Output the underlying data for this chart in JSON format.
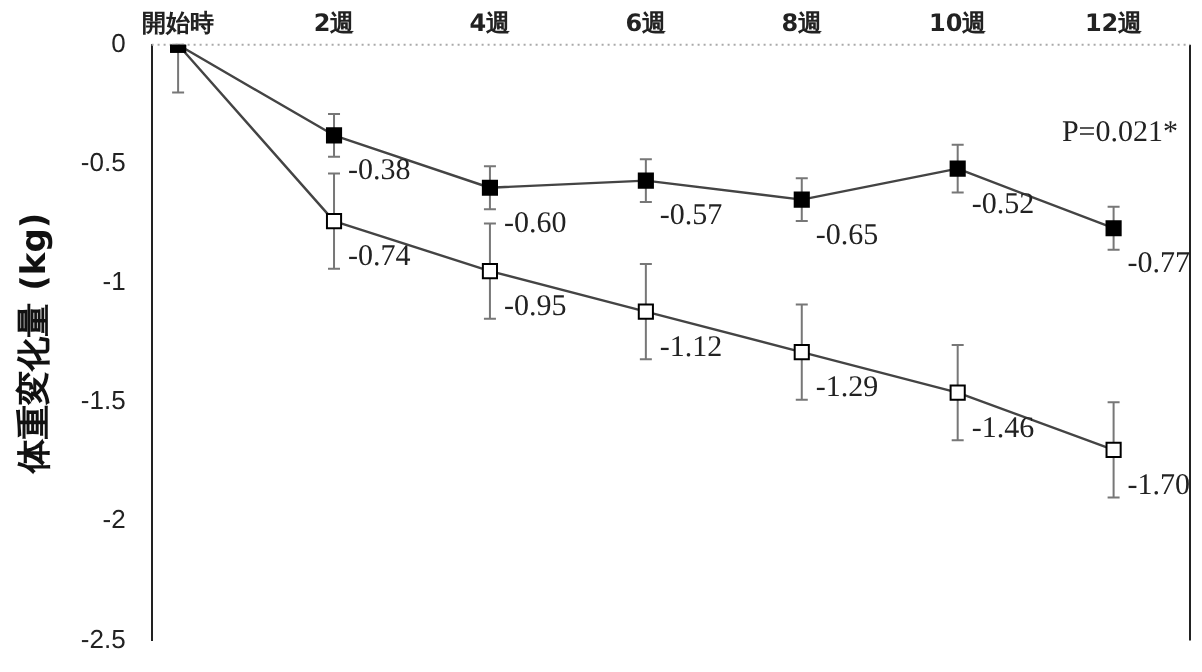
{
  "chart_data": {
    "type": "line",
    "ylabel": "体重変化量 (kg)",
    "categories": [
      "開始時",
      "2週",
      "4週",
      "6週",
      "8週",
      "10週",
      "12週"
    ],
    "series": [
      {
        "color": "#000000",
        "values": [
          0,
          -0.38,
          -0.6,
          -0.57,
          -0.65,
          -0.52,
          -0.77
        ],
        "errors": [
          null,
          0.09,
          0.09,
          0.09,
          0.09,
          0.1,
          0.09
        ],
        "value_labels": [
          null,
          "-0.38",
          "-0.60",
          "-0.57",
          "-0.65",
          "-0.52",
          "-0.77"
        ]
      },
      {
        "color": "#ffffff",
        "values": [
          0,
          -0.74,
          -0.95,
          -1.12,
          -1.29,
          -1.46,
          -1.7
        ],
        "errors": [
          [
            -0.2,
            0
          ],
          0.2,
          0.2,
          0.2,
          0.2,
          0.2,
          0.2
        ],
        "value_labels": [
          null,
          "-0.74",
          "-0.95",
          "-1.12",
          "-1.29",
          "-1.46",
          "-1.70"
        ]
      }
    ],
    "ylim": [
      -2.5,
      0
    ],
    "yticks": [
      0,
      -0.5,
      -1,
      -1.5,
      -2,
      -2.5
    ],
    "marker": "square",
    "line_style": "solid",
    "grid": false,
    "legend": false,
    "annotations": [
      "P=0.021*"
    ]
  }
}
